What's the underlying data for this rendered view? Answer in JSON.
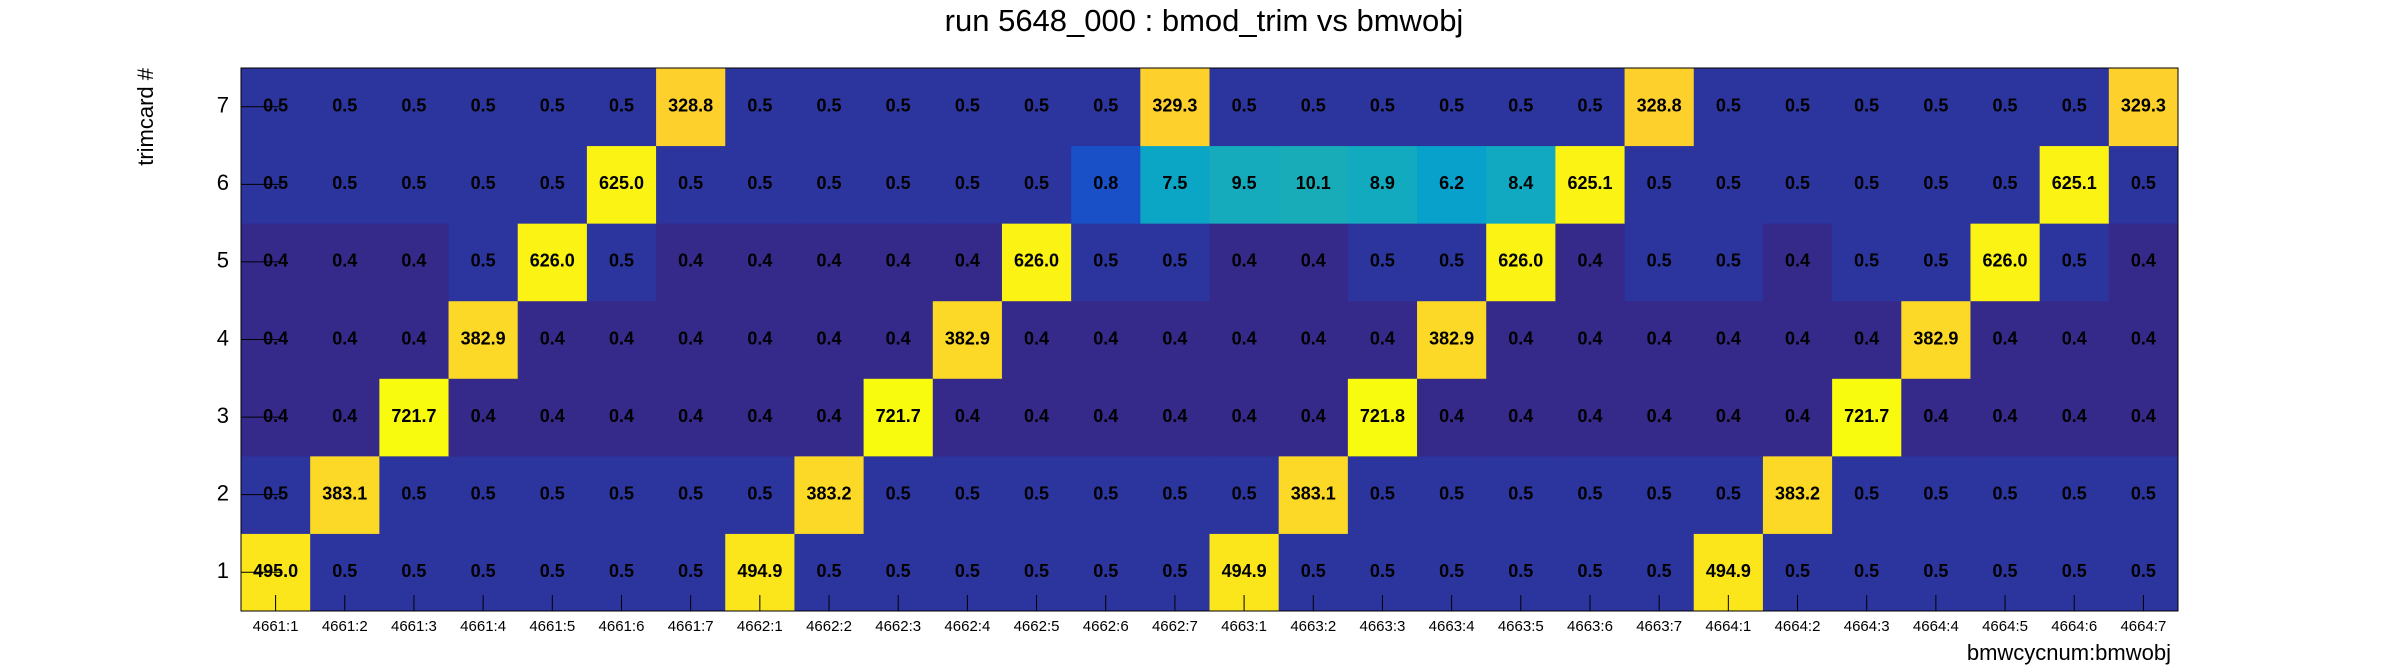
{
  "chart_data": {
    "type": "heatmap",
    "title": "run 5648_000 : bmod_trim vs bmwobj",
    "xlabel": "bmwcycnum:bmwobj",
    "ylabel": "trimcard #",
    "zlog": true,
    "zlim": [
      0.4,
      721.8
    ],
    "colorscale": [
      "#35298a",
      "#0f5cdd",
      "#1481d6",
      "#06a4ca",
      "#2eb7a4",
      "#87bf77",
      "#d1bb59",
      "#fec832",
      "#f9fb0e"
    ],
    "x_categories": [
      "4661:1",
      "4661:2",
      "4661:3",
      "4661:4",
      "4661:5",
      "4661:6",
      "4661:7",
      "4662:1",
      "4662:2",
      "4662:3",
      "4662:4",
      "4662:5",
      "4662:6",
      "4662:7",
      "4663:1",
      "4663:2",
      "4663:3",
      "4663:4",
      "4663:5",
      "4663:6",
      "4663:7",
      "4664:1",
      "4664:2",
      "4664:3",
      "4664:4",
      "4664:5",
      "4664:6",
      "4664:7"
    ],
    "y_categories": [
      1,
      2,
      3,
      4,
      5,
      6,
      7
    ],
    "values": [
      [
        495.0,
        0.5,
        0.5,
        0.5,
        0.5,
        0.5,
        0.5,
        494.9,
        0.5,
        0.5,
        0.5,
        0.5,
        0.5,
        0.5,
        494.9,
        0.5,
        0.5,
        0.5,
        0.5,
        0.5,
        0.5,
        494.9,
        0.5,
        0.5,
        0.5,
        0.5,
        0.5,
        0.5
      ],
      [
        0.5,
        383.1,
        0.5,
        0.5,
        0.5,
        0.5,
        0.5,
        0.5,
        383.2,
        0.5,
        0.5,
        0.5,
        0.5,
        0.5,
        0.5,
        383.1,
        0.5,
        0.5,
        0.5,
        0.5,
        0.5,
        0.5,
        383.2,
        0.5,
        0.5,
        0.5,
        0.5,
        0.5
      ],
      [
        0.4,
        0.4,
        721.7,
        0.4,
        0.4,
        0.4,
        0.4,
        0.4,
        0.4,
        721.7,
        0.4,
        0.4,
        0.4,
        0.4,
        0.4,
        0.4,
        721.8,
        0.4,
        0.4,
        0.4,
        0.4,
        0.4,
        0.4,
        721.7,
        0.4,
        0.4,
        0.4,
        0.4
      ],
      [
        0.4,
        0.4,
        0.4,
        382.9,
        0.4,
        0.4,
        0.4,
        0.4,
        0.4,
        0.4,
        382.9,
        0.4,
        0.4,
        0.4,
        0.4,
        0.4,
        0.4,
        382.9,
        0.4,
        0.4,
        0.4,
        0.4,
        0.4,
        0.4,
        382.9,
        0.4,
        0.4,
        0.4
      ],
      [
        0.4,
        0.4,
        0.4,
        0.5,
        626.0,
        0.5,
        0.4,
        0.4,
        0.4,
        0.4,
        0.4,
        626.0,
        0.5,
        0.5,
        0.4,
        0.4,
        0.5,
        0.5,
        626.0,
        0.4,
        0.5,
        0.5,
        0.4,
        0.5,
        0.5,
        626.0,
        0.5,
        0.4
      ],
      [
        0.5,
        0.5,
        0.5,
        0.5,
        0.5,
        625.0,
        0.5,
        0.5,
        0.5,
        0.5,
        0.5,
        0.5,
        0.8,
        7.5,
        9.5,
        10.1,
        8.9,
        6.2,
        8.4,
        625.1,
        0.5,
        0.5,
        0.5,
        0.5,
        0.5,
        0.5,
        625.1,
        0.5
      ],
      [
        0.5,
        0.5,
        0.5,
        0.5,
        0.5,
        0.5,
        328.8,
        0.5,
        0.5,
        0.5,
        0.5,
        0.5,
        0.5,
        329.3,
        0.5,
        0.5,
        0.5,
        0.5,
        0.5,
        0.5,
        328.8,
        0.5,
        0.5,
        0.5,
        0.5,
        0.5,
        0.5,
        329.3
      ]
    ],
    "value_labels": [
      [
        "495.0",
        "0.5",
        "0.5",
        "0.5",
        "0.5",
        "0.5",
        "0.5",
        "494.9",
        "0.5",
        "0.5",
        "0.5",
        "0.5",
        "0.5",
        "0.5",
        "494.9",
        "0.5",
        "0.5",
        "0.5",
        "0.5",
        "0.5",
        "0.5",
        "494.9",
        "0.5",
        "0.5",
        "0.5",
        "0.5",
        "0.5",
        "0.5"
      ],
      [
        "0.5",
        "383.1",
        "0.5",
        "0.5",
        "0.5",
        "0.5",
        "0.5",
        "0.5",
        "383.2",
        "0.5",
        "0.5",
        "0.5",
        "0.5",
        "0.5",
        "0.5",
        "383.1",
        "0.5",
        "0.5",
        "0.5",
        "0.5",
        "0.5",
        "0.5",
        "383.2",
        "0.5",
        "0.5",
        "0.5",
        "0.5",
        "0.5"
      ],
      [
        "0.4",
        "0.4",
        "721.7",
        "0.4",
        "0.4",
        "0.4",
        "0.4",
        "0.4",
        "0.4",
        "721.7",
        "0.4",
        "0.4",
        "0.4",
        "0.4",
        "0.4",
        "0.4",
        "721.8",
        "0.4",
        "0.4",
        "0.4",
        "0.4",
        "0.4",
        "0.4",
        "721.7",
        "0.4",
        "0.4",
        "0.4",
        "0.4"
      ],
      [
        "0.4",
        "0.4",
        "0.4",
        "382.9",
        "0.4",
        "0.4",
        "0.4",
        "0.4",
        "0.4",
        "0.4",
        "382.9",
        "0.4",
        "0.4",
        "0.4",
        "0.4",
        "0.4",
        "0.4",
        "382.9",
        "0.4",
        "0.4",
        "0.4",
        "0.4",
        "0.4",
        "0.4",
        "382.9",
        "0.4",
        "0.4",
        "0.4"
      ],
      [
        "0.4",
        "0.4",
        "0.4",
        "0.5",
        "626.0",
        "0.5",
        "0.4",
        "0.4",
        "0.4",
        "0.4",
        "0.4",
        "626.0",
        "0.5",
        "0.5",
        "0.4",
        "0.4",
        "0.5",
        "0.5",
        "626.0",
        "0.4",
        "0.5",
        "0.5",
        "0.4",
        "0.5",
        "0.5",
        "626.0",
        "0.5",
        "0.4"
      ],
      [
        "0.5",
        "0.5",
        "0.5",
        "0.5",
        "0.5",
        "625.0",
        "0.5",
        "0.5",
        "0.5",
        "0.5",
        "0.5",
        "0.5",
        "0.8",
        "7.5",
        "9.5",
        "10.1",
        "8.9",
        "6.2",
        "8.4",
        "625.1",
        "0.5",
        "0.5",
        "0.5",
        "0.5",
        "0.5",
        "0.5",
        "625.1",
        "0.5"
      ],
      [
        "0.5",
        "0.5",
        "0.5",
        "0.5",
        "0.5",
        "0.5",
        "328.8",
        "0.5",
        "0.5",
        "0.5",
        "0.5",
        "0.5",
        "0.5",
        "329.3",
        "0.5",
        "0.5",
        "0.5",
        "0.5",
        "0.5",
        "0.5",
        "328.8",
        "0.5",
        "0.5",
        "0.5",
        "0.5",
        "0.5",
        "0.5",
        "329.3"
      ]
    ]
  }
}
